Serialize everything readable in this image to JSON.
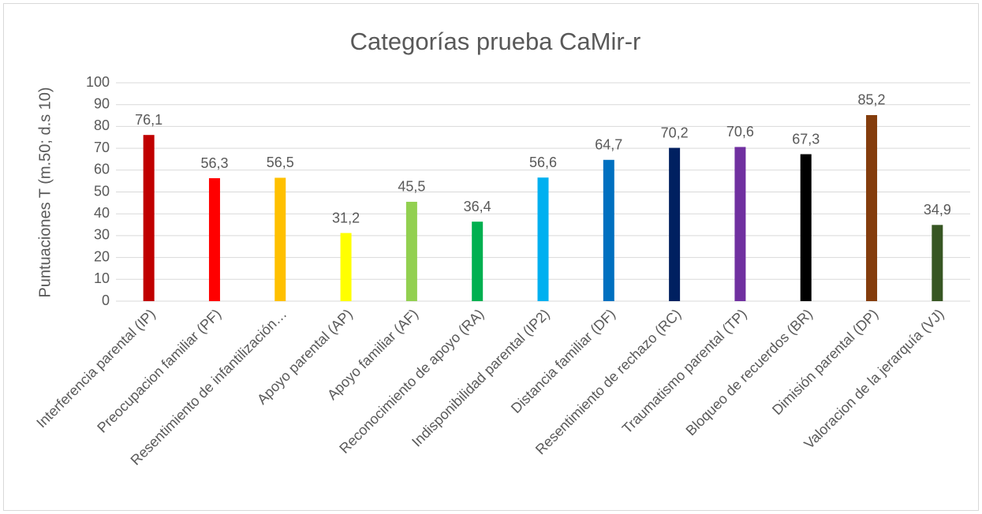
{
  "chart_data": {
    "type": "bar",
    "title": "Categorías prueba CaMir-r",
    "y_label": "Puntuaciones T (m.50; d.s 10)",
    "categories": [
      "Interferencia parental (IP)",
      "Preocupacion familiar (PF)",
      "Resentimiento de infantilización…",
      "Apoyo parental (AP)",
      "Apoyo familiar (AF)",
      "Reconocimiento de apoyo (RA)",
      "Indisponibilidad parental (IP2)",
      "Distancia familiar (DF)",
      "Resentimiento de rechazo (RC)",
      "Traumatismo parental (TP)",
      "Bloqueo de recuerdos (BR)",
      "Dimisión parental (DP)",
      "Valoracion de la jerarquía (VJ)"
    ],
    "values": [
      76.1,
      56.3,
      56.5,
      31.2,
      45.5,
      36.4,
      56.6,
      64.7,
      70.2,
      70.6,
      67.3,
      85.2,
      34.9
    ],
    "value_labels": [
      "76,1",
      "56,3",
      "56,5",
      "31,2",
      "45,5",
      "36,4",
      "56,6",
      "64,7",
      "70,2",
      "70,6",
      "67,3",
      "85,2",
      "34,9"
    ],
    "colors": [
      "#c00000",
      "#ff0000",
      "#ffc000",
      "#ffff00",
      "#92d050",
      "#00b050",
      "#00b0f0",
      "#0070c0",
      "#002060",
      "#7030a0",
      "#000000",
      "#843c0c",
      "#375623"
    ],
    "ylim": [
      0,
      100
    ],
    "yticks": [
      0,
      10,
      20,
      30,
      40,
      50,
      60,
      70,
      80,
      90,
      100
    ],
    "grid": true
  }
}
